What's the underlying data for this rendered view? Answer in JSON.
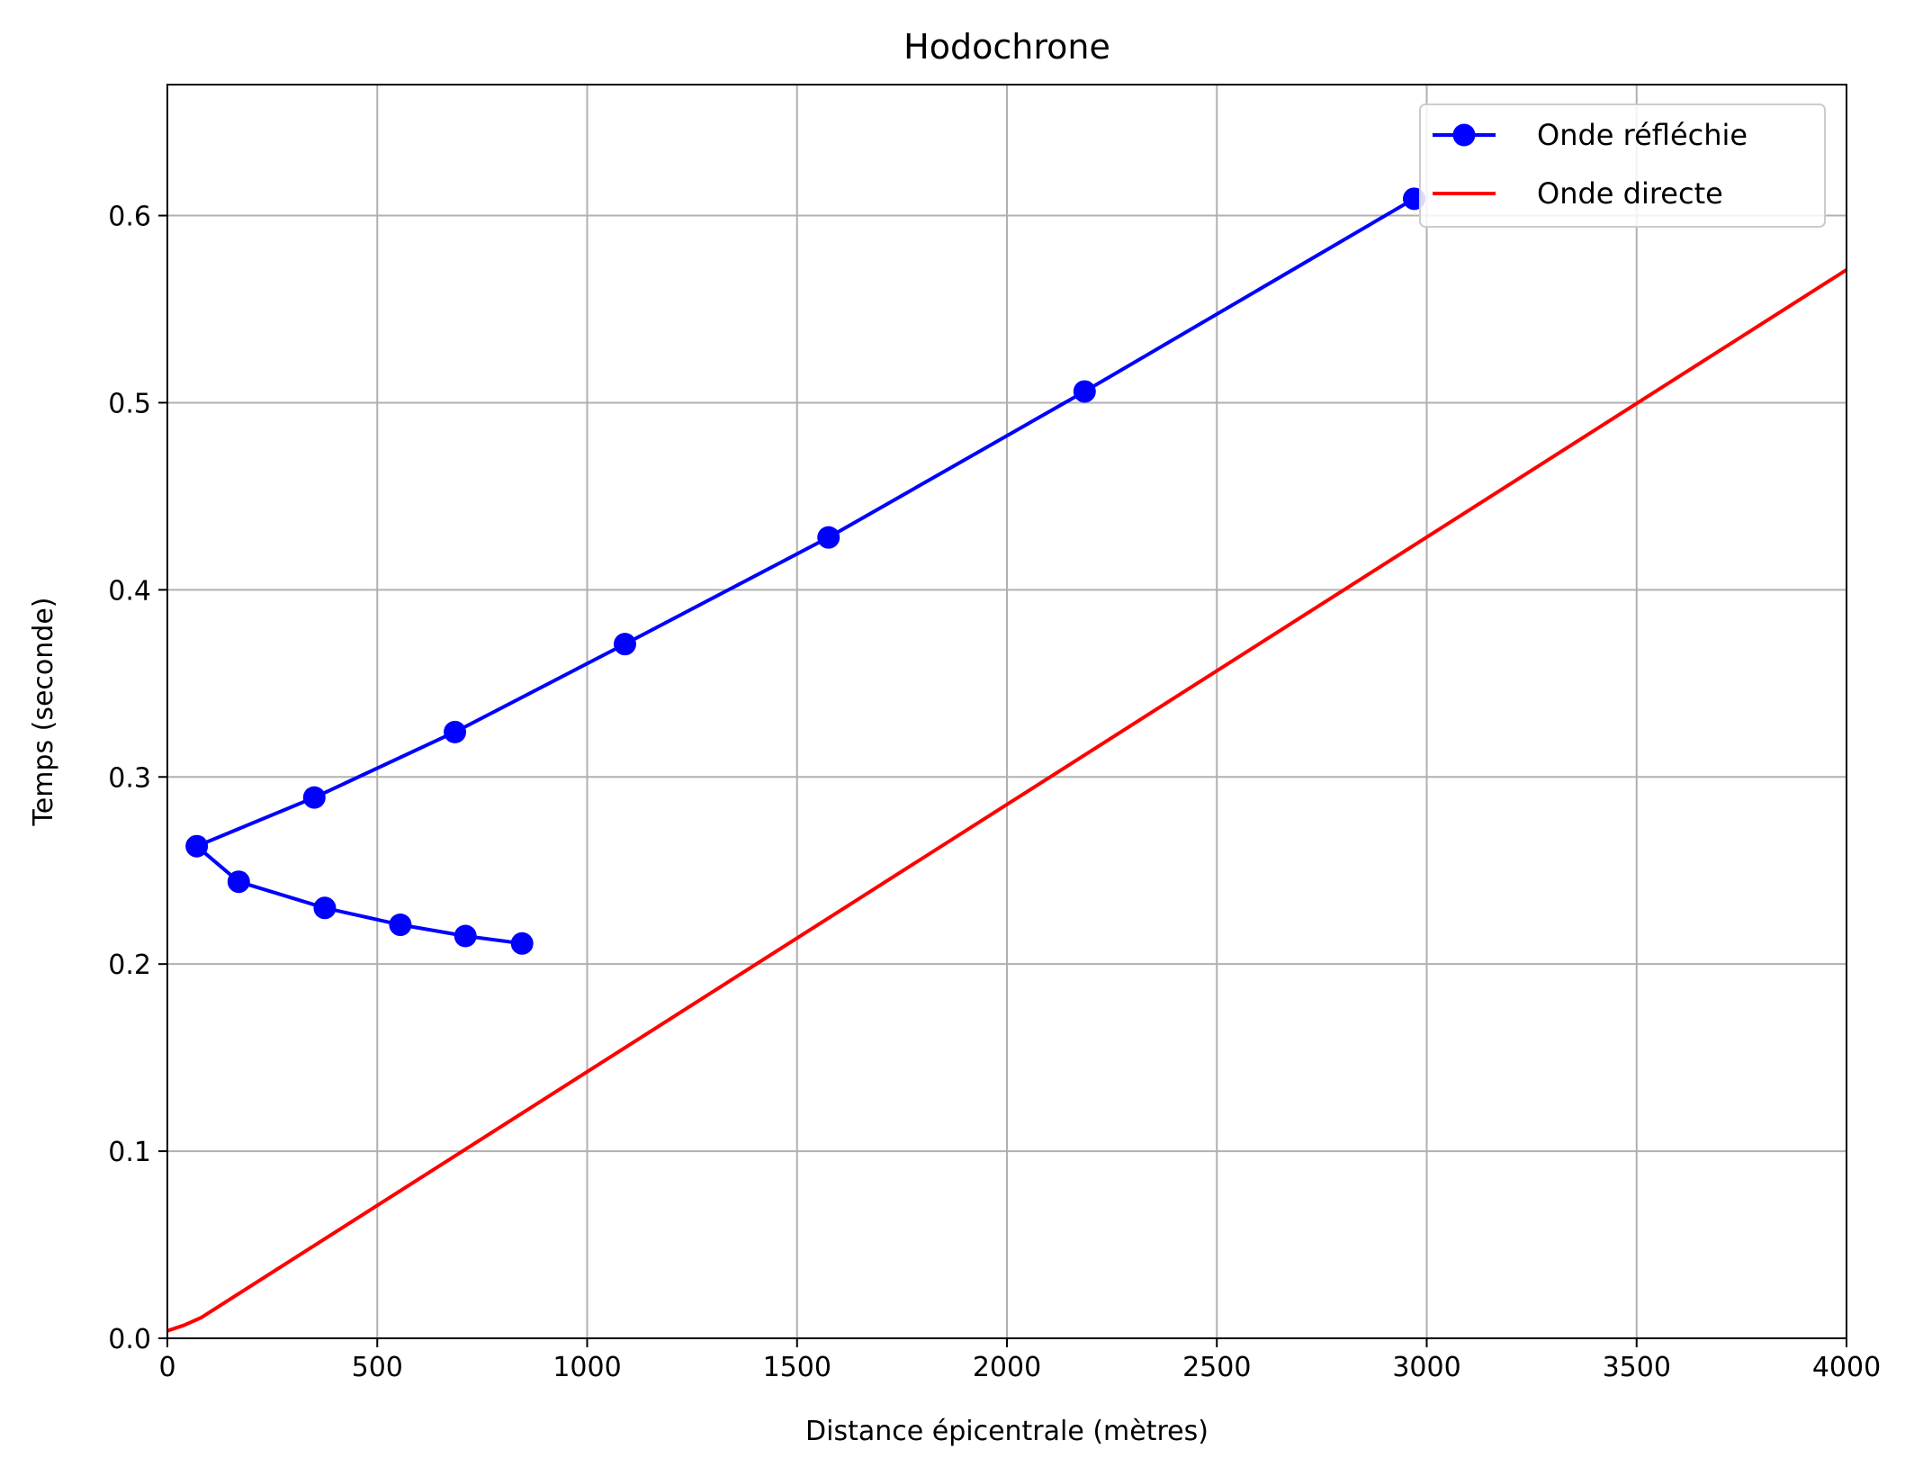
{
  "chart_data": {
    "type": "line",
    "title": "Hodochrone",
    "xlabel": "Distance épicentrale (mètres)",
    "ylabel": "Temps (seconde)",
    "xlim": [
      0,
      4000
    ],
    "ylim": [
      0,
      0.67
    ],
    "xticks": [
      0,
      500,
      1000,
      1500,
      2000,
      2500,
      3000,
      3500,
      4000
    ],
    "yticks": [
      0.0,
      0.1,
      0.2,
      0.3,
      0.4,
      0.5,
      0.6
    ],
    "xtick_labels": [
      "0",
      "500",
      "1000",
      "1500",
      "2000",
      "2500",
      "3000",
      "3500",
      "4000"
    ],
    "ytick_labels": [
      "0.0",
      "0.1",
      "0.2",
      "0.3",
      "0.4",
      "0.5",
      "0.6"
    ],
    "grid": true,
    "legend_position": "top-right",
    "series": [
      {
        "name": "Onde réfléchie",
        "color": "#0000ff",
        "marker": "circle",
        "x": [
          845,
          710,
          555,
          375,
          170,
          70,
          350,
          685,
          1090,
          1575,
          2185,
          2970
        ],
        "y": [
          0.211,
          0.215,
          0.221,
          0.23,
          0.244,
          0.263,
          0.289,
          0.324,
          0.371,
          0.428,
          0.506,
          0.609
        ]
      },
      {
        "name": "Onde directe",
        "color": "#ff0000",
        "marker": "none",
        "x": [
          0,
          40,
          80,
          4000
        ],
        "y": [
          0.004,
          0.007,
          0.011,
          0.571
        ]
      }
    ]
  }
}
